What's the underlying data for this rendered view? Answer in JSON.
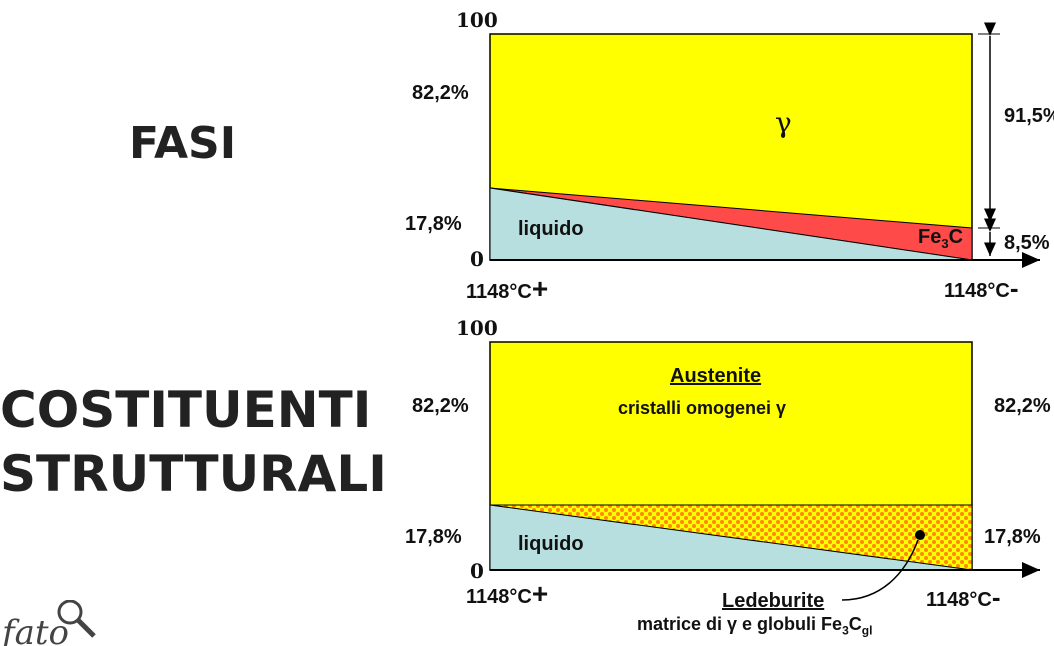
{
  "left_labels": {
    "phases": "FASI",
    "constituents_line1": "COSTITUENTI",
    "constituents_line2": "STRUTTURALI"
  },
  "top_diagram": {
    "y_top": "100",
    "y_82": "82,2%",
    "y_17": "17,8%",
    "y_zero": "0",
    "x_left": "1148°C",
    "x_left_sign": "+",
    "x_right": "1148°C",
    "x_right_sign": "-",
    "gamma": "γ",
    "liquido": "liquido",
    "fe3c_base": "Fe",
    "fe3c_sub": "3",
    "fe3c_end": "C",
    "right_915": "91,5%",
    "right_85": "8,5%"
  },
  "bottom_diagram": {
    "y_top": "100",
    "y_82": "82,2%",
    "y_17": "17,8%",
    "y_zero": "0",
    "x_left": "1148°C",
    "x_left_sign": "+",
    "x_right": "1148°C",
    "x_right_sign": "-",
    "austenite_title": "Austenite",
    "austenite_sub": "cristalli omogenei γ",
    "liquido": "liquido",
    "right_82": "82,2%",
    "right_17": "17,8%",
    "ledeburite_title": "Ledeburite",
    "ledeburite_sub_main": "matrice di γ e globuli Fe",
    "ledeburite_sub_3": "3",
    "ledeburite_sub_C": "C",
    "ledeburite_sub_gl": "gl"
  },
  "colors": {
    "gamma": "#ffff00",
    "liquid": "#b8dfe0",
    "cementite": "#ff4a4a",
    "ledeburite_dots": "#ff8800"
  }
}
